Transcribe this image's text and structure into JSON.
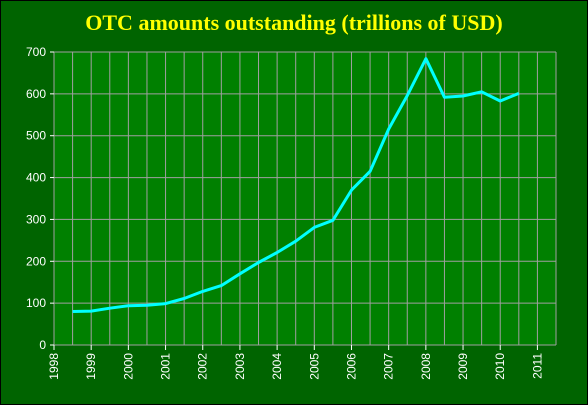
{
  "chart_data": {
    "type": "line",
    "title": "OTC amounts outstanding (trillions of USD)",
    "xlabel": "",
    "ylabel": "",
    "xlim": [
      1998,
      2011.5
    ],
    "ylim": [
      0,
      700
    ],
    "x_ticks": [
      "1998",
      "1999",
      "2000",
      "2001",
      "2002",
      "2003",
      "2004",
      "2005",
      "2006",
      "2007",
      "2008",
      "2009",
      "2010",
      "2011"
    ],
    "y_ticks": [
      "0",
      "100",
      "200",
      "300",
      "400",
      "500",
      "600",
      "700"
    ],
    "grid": true,
    "colors": {
      "background": "#006400",
      "plot": "#008000",
      "grid": "#A0A0A0",
      "line": "#00FFFF",
      "title": "#FFFF00",
      "text": "#FFFFFF"
    },
    "series": [
      {
        "x": [
          1998.5,
          1999.0,
          1999.5,
          2000.0,
          2000.5,
          2001.0,
          2001.5,
          2002.0,
          2002.5,
          2003.0,
          2003.5,
          2004.0,
          2004.5,
          2005.0,
          2005.5,
          2006.0,
          2006.5,
          2007.0,
          2007.5,
          2008.0,
          2008.5,
          2009.0,
          2009.5,
          2010.0,
          2010.5
        ],
        "y": [
          80,
          81,
          88,
          94,
          95,
          99,
          111,
          128,
          142,
          170,
          197,
          221,
          248,
          281,
          298,
          370,
          415,
          516,
          596,
          684,
          592,
          595,
          605,
          583,
          601
        ]
      }
    ]
  }
}
